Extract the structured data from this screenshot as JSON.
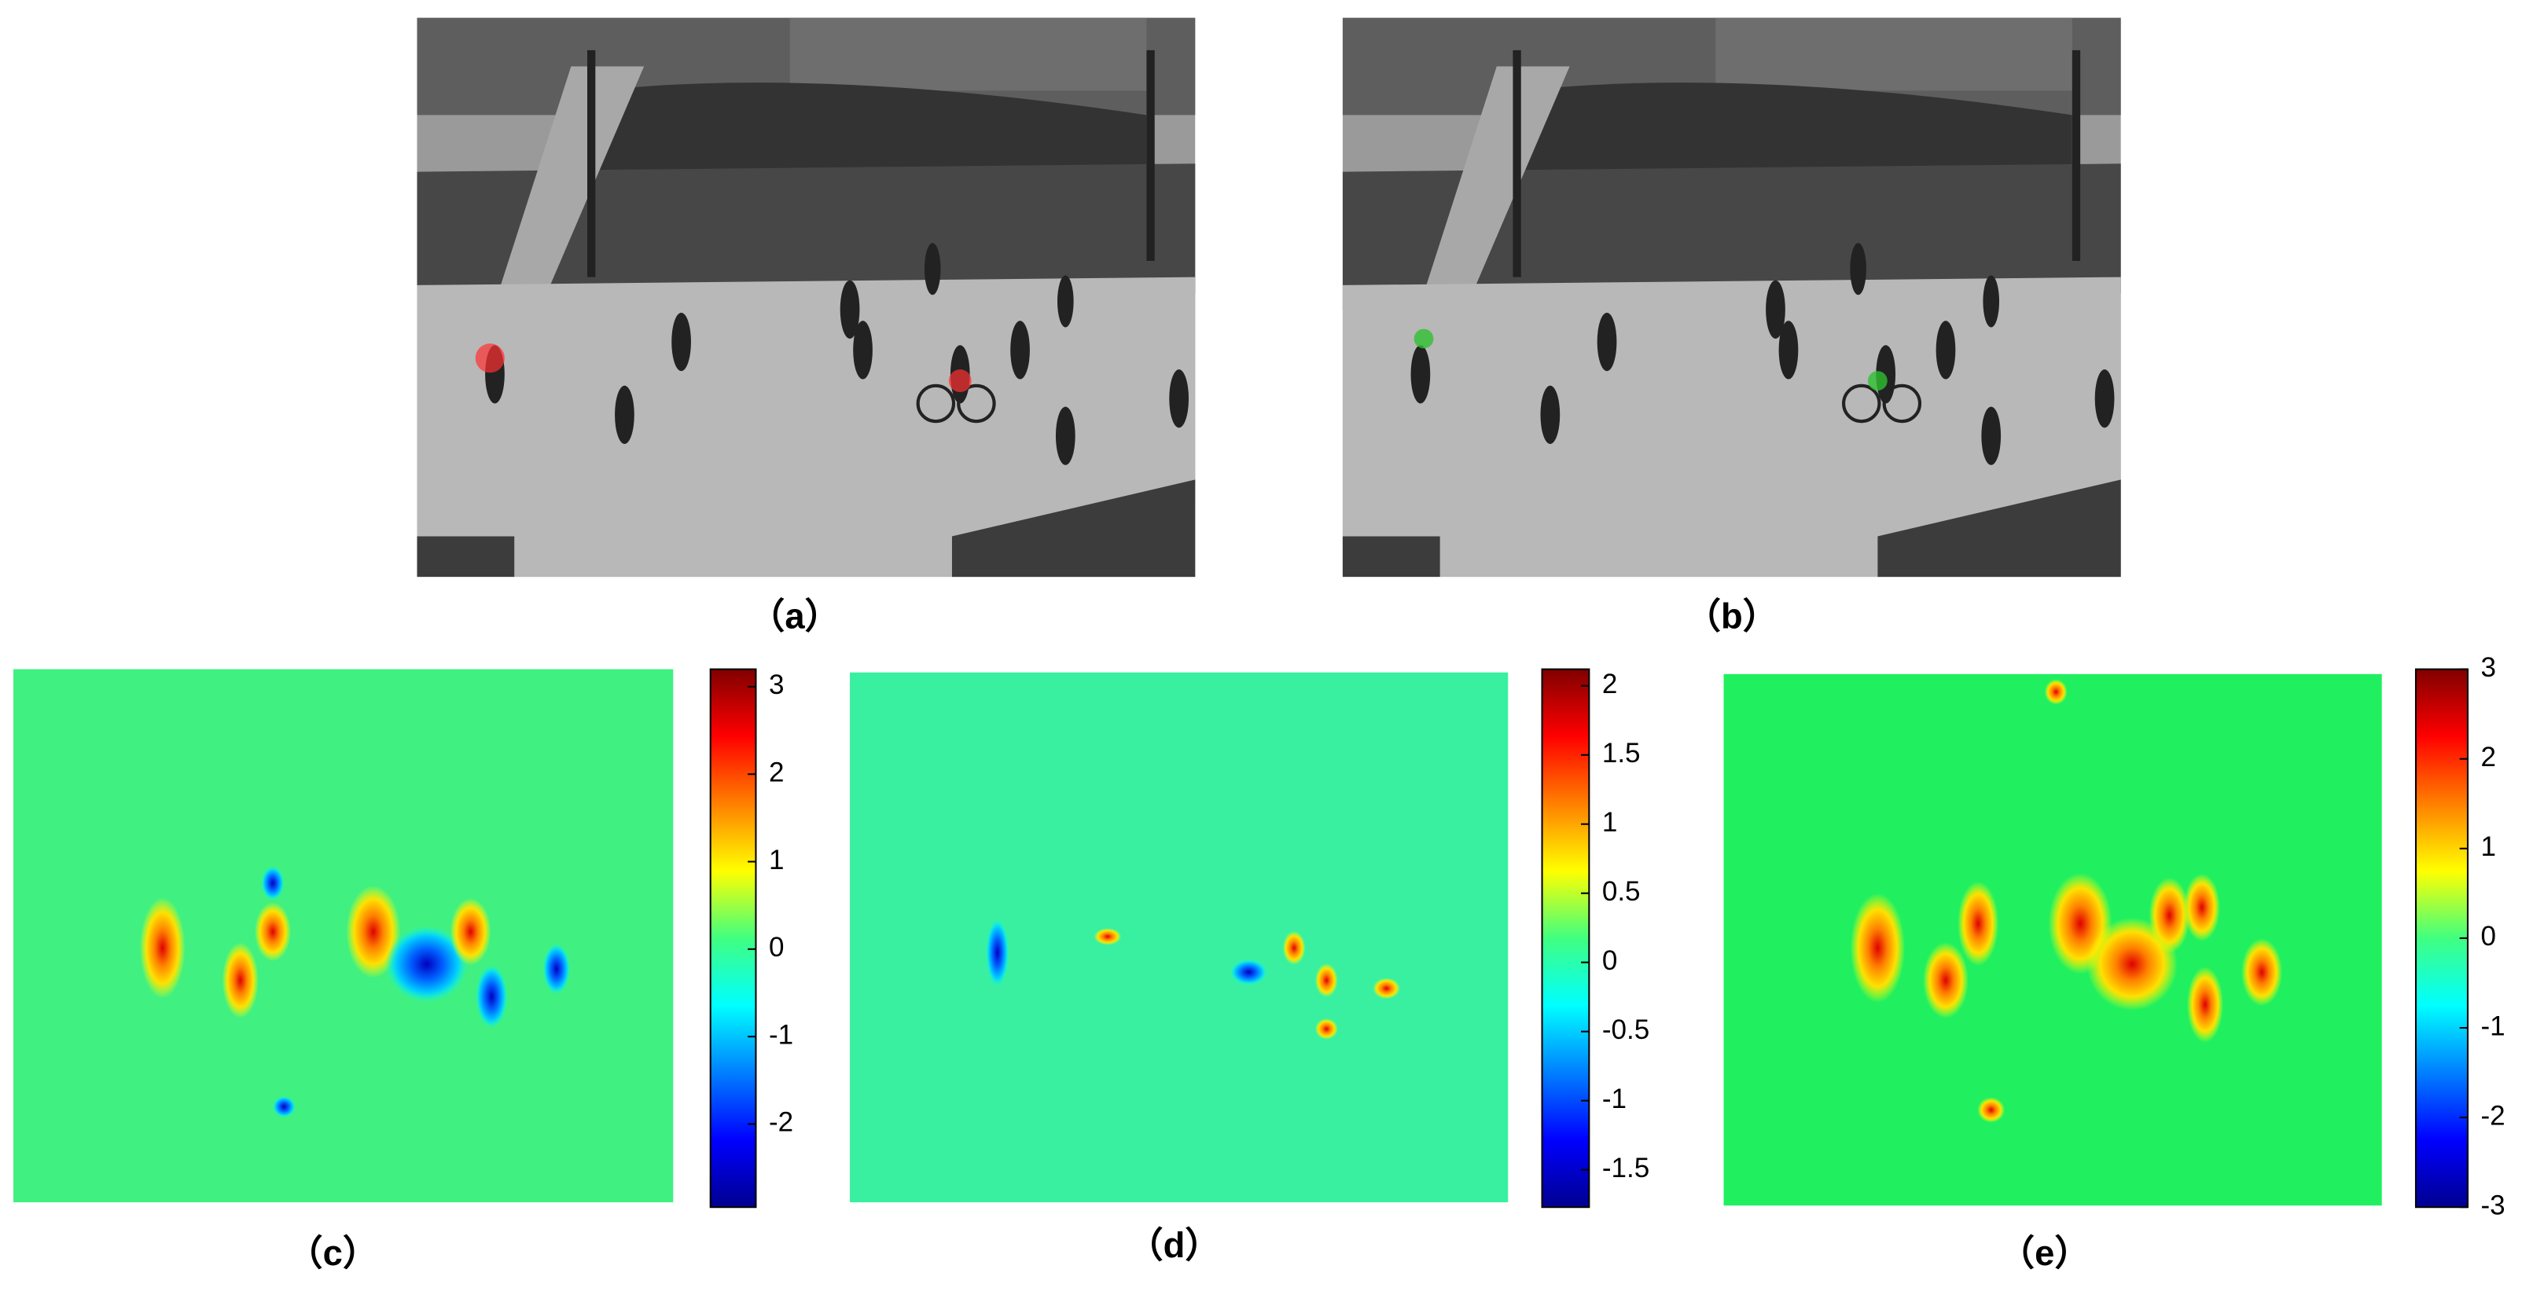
{
  "panels": [
    {
      "label": "（a）"
    },
    {
      "label": "（b）"
    },
    {
      "label": "（c）",
      "colorbar": {
        "lim": [
          -2.95,
          3.2
        ],
        "ticks": [
          3,
          2,
          1,
          0,
          -1,
          -2
        ]
      }
    },
    {
      "label": "（d）",
      "colorbar": {
        "lim": [
          -1.77,
          2.12
        ],
        "ticks": [
          2,
          1.5,
          1,
          0.5,
          0,
          -0.5,
          -1,
          -1.5
        ]
      }
    },
    {
      "label": "（e）",
      "colorbar": {
        "lim": [
          -3,
          3
        ],
        "ticks": [
          3,
          2,
          1,
          0,
          -1,
          -2,
          -3
        ]
      }
    }
  ]
}
